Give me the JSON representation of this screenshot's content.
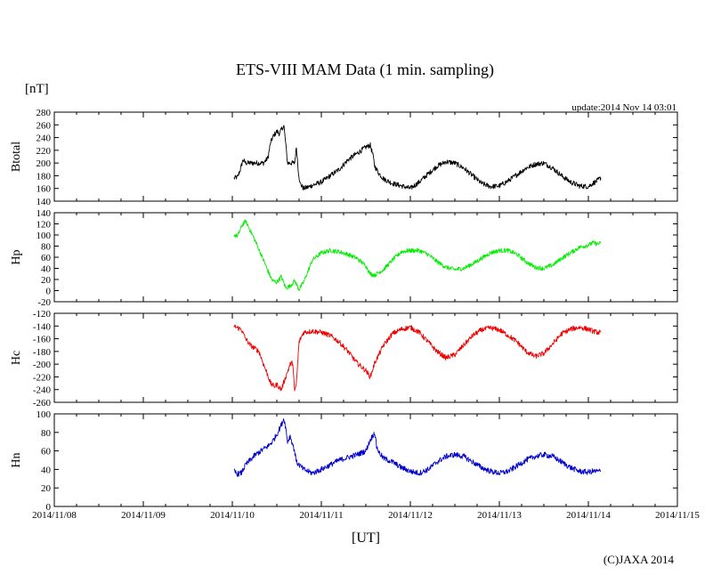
{
  "chart_data": {
    "type": "line",
    "title": "ETS-VIII MAM Data (1 min. sampling)",
    "unit_label": "[nT]",
    "update_text": "update:2014 Nov 14 03:01",
    "xlabel": "[UT]",
    "copyright": "(C)JAXA 2014",
    "x_ticks": [
      "2014/11/08",
      "2014/11/09",
      "2014/11/10",
      "2014/11/11",
      "2014/11/12",
      "2014/11/13",
      "2014/11/14",
      "2014/11/15"
    ],
    "xlim_days": [
      0,
      7
    ],
    "panels": [
      {
        "name": "Btotal",
        "ylabel": "Btotal",
        "color": "#000000",
        "ylim": [
          140,
          280
        ],
        "yticks": [
          140,
          160,
          180,
          200,
          220,
          240,
          260,
          280
        ],
        "noise": 4,
        "x": [
          2.02,
          2.06,
          2.09,
          2.12,
          2.15,
          2.35,
          2.4,
          2.43,
          2.46,
          2.5,
          2.53,
          2.56,
          2.58,
          2.6,
          2.62,
          2.65,
          2.7,
          2.72,
          2.74,
          2.76,
          2.8,
          2.85,
          2.9,
          3.0,
          3.1,
          3.2,
          3.3,
          3.4,
          3.5,
          3.55,
          3.58,
          3.6,
          3.65,
          3.7,
          3.8,
          3.9,
          4.0,
          4.1,
          4.2,
          4.3,
          4.4,
          4.5,
          4.6,
          4.7,
          4.8,
          4.9,
          5.0,
          5.1,
          5.2,
          5.3,
          5.4,
          5.5,
          5.6,
          5.7,
          5.8,
          5.9,
          6.0,
          6.05,
          6.1,
          6.14
        ],
        "y": [
          176,
          178,
          190,
          205,
          200,
          200,
          208,
          232,
          242,
          250,
          246,
          255,
          258,
          230,
          200,
          200,
          200,
          225,
          190,
          168,
          160,
          162,
          165,
          170,
          180,
          190,
          205,
          215,
          225,
          228,
          212,
          195,
          183,
          175,
          168,
          164,
          160,
          170,
          183,
          195,
          202,
          200,
          192,
          180,
          168,
          163,
          164,
          172,
          182,
          192,
          198,
          200,
          192,
          180,
          170,
          164,
          163,
          168,
          172,
          177
        ]
      },
      {
        "name": "Hp",
        "ylabel": "Hp",
        "color": "#00ee00",
        "ylim": [
          -20,
          140
        ],
        "yticks": [
          -20,
          0,
          20,
          40,
          60,
          80,
          100,
          120,
          140
        ],
        "noise": 4,
        "x": [
          2.02,
          2.06,
          2.09,
          2.12,
          2.15,
          2.25,
          2.35,
          2.4,
          2.45,
          2.5,
          2.55,
          2.6,
          2.65,
          2.7,
          2.75,
          2.8,
          2.85,
          2.9,
          3.0,
          3.1,
          3.2,
          3.3,
          3.4,
          3.5,
          3.55,
          3.6,
          3.7,
          3.8,
          3.9,
          4.0,
          4.1,
          4.2,
          4.3,
          4.4,
          4.5,
          4.6,
          4.7,
          4.8,
          4.9,
          5.0,
          5.1,
          5.2,
          5.3,
          5.4,
          5.5,
          5.6,
          5.7,
          5.8,
          5.9,
          6.0,
          6.05,
          6.1,
          6.14
        ],
        "y": [
          100,
          98,
          110,
          120,
          125,
          92,
          55,
          35,
          18,
          15,
          25,
          5,
          8,
          18,
          2,
          15,
          35,
          55,
          68,
          72,
          70,
          65,
          58,
          45,
          30,
          28,
          38,
          55,
          70,
          72,
          72,
          65,
          52,
          42,
          38,
          40,
          48,
          58,
          68,
          72,
          72,
          65,
          52,
          42,
          40,
          46,
          58,
          68,
          78,
          82,
          86,
          84,
          85
        ]
      },
      {
        "name": "Hc",
        "ylabel": "Hc",
        "color": "#ee0000",
        "ylim": [
          -260,
          -120
        ],
        "yticks": [
          -260,
          -240,
          -220,
          -200,
          -180,
          -160,
          -140,
          -120
        ],
        "noise": 4,
        "x": [
          2.02,
          2.06,
          2.1,
          2.15,
          2.2,
          2.3,
          2.35,
          2.4,
          2.43,
          2.47,
          2.5,
          2.55,
          2.6,
          2.65,
          2.68,
          2.7,
          2.72,
          2.75,
          2.8,
          2.9,
          3.0,
          3.1,
          3.2,
          3.3,
          3.4,
          3.5,
          3.55,
          3.6,
          3.7,
          3.8,
          3.9,
          4.0,
          4.1,
          4.2,
          4.3,
          4.4,
          4.5,
          4.6,
          4.7,
          4.8,
          4.9,
          5.0,
          5.1,
          5.2,
          5.3,
          5.4,
          5.5,
          5.6,
          5.7,
          5.8,
          5.9,
          6.0,
          6.05,
          6.1,
          6.14
        ],
        "y": [
          -140,
          -143,
          -145,
          -160,
          -170,
          -180,
          -200,
          -218,
          -230,
          -235,
          -232,
          -240,
          -220,
          -200,
          -198,
          -245,
          -230,
          -165,
          -150,
          -148,
          -150,
          -155,
          -165,
          -180,
          -198,
          -210,
          -220,
          -198,
          -170,
          -152,
          -145,
          -142,
          -150,
          -165,
          -180,
          -190,
          -185,
          -170,
          -155,
          -146,
          -143,
          -146,
          -155,
          -165,
          -180,
          -188,
          -183,
          -168,
          -152,
          -145,
          -142,
          -145,
          -148,
          -150,
          -150
        ]
      },
      {
        "name": "Hn",
        "ylabel": "Hn",
        "color": "#0000cc",
        "ylim": [
          0,
          100
        ],
        "yticks": [
          0,
          20,
          40,
          60,
          80,
          100
        ],
        "noise": 3,
        "x": [
          2.02,
          2.06,
          2.1,
          2.15,
          2.25,
          2.35,
          2.4,
          2.45,
          2.5,
          2.55,
          2.58,
          2.6,
          2.62,
          2.65,
          2.7,
          2.72,
          2.75,
          2.8,
          2.9,
          3.0,
          3.1,
          3.2,
          3.3,
          3.4,
          3.5,
          3.55,
          3.6,
          3.62,
          3.65,
          3.7,
          3.8,
          3.9,
          4.0,
          4.1,
          4.2,
          4.3,
          4.4,
          4.5,
          4.6,
          4.7,
          4.8,
          4.9,
          5.0,
          5.1,
          5.2,
          5.3,
          5.4,
          5.5,
          5.6,
          5.7,
          5.8,
          5.9,
          6.0,
          6.05,
          6.1,
          6.14
        ],
        "y": [
          38,
          35,
          36,
          45,
          55,
          62,
          65,
          70,
          78,
          88,
          95,
          85,
          70,
          76,
          60,
          48,
          45,
          40,
          36,
          40,
          45,
          50,
          53,
          56,
          60,
          72,
          80,
          65,
          58,
          52,
          48,
          42,
          38,
          36,
          40,
          48,
          54,
          56,
          54,
          48,
          42,
          38,
          36,
          38,
          44,
          50,
          54,
          56,
          54,
          48,
          42,
          38,
          37,
          38,
          38,
          38
        ]
      }
    ]
  }
}
